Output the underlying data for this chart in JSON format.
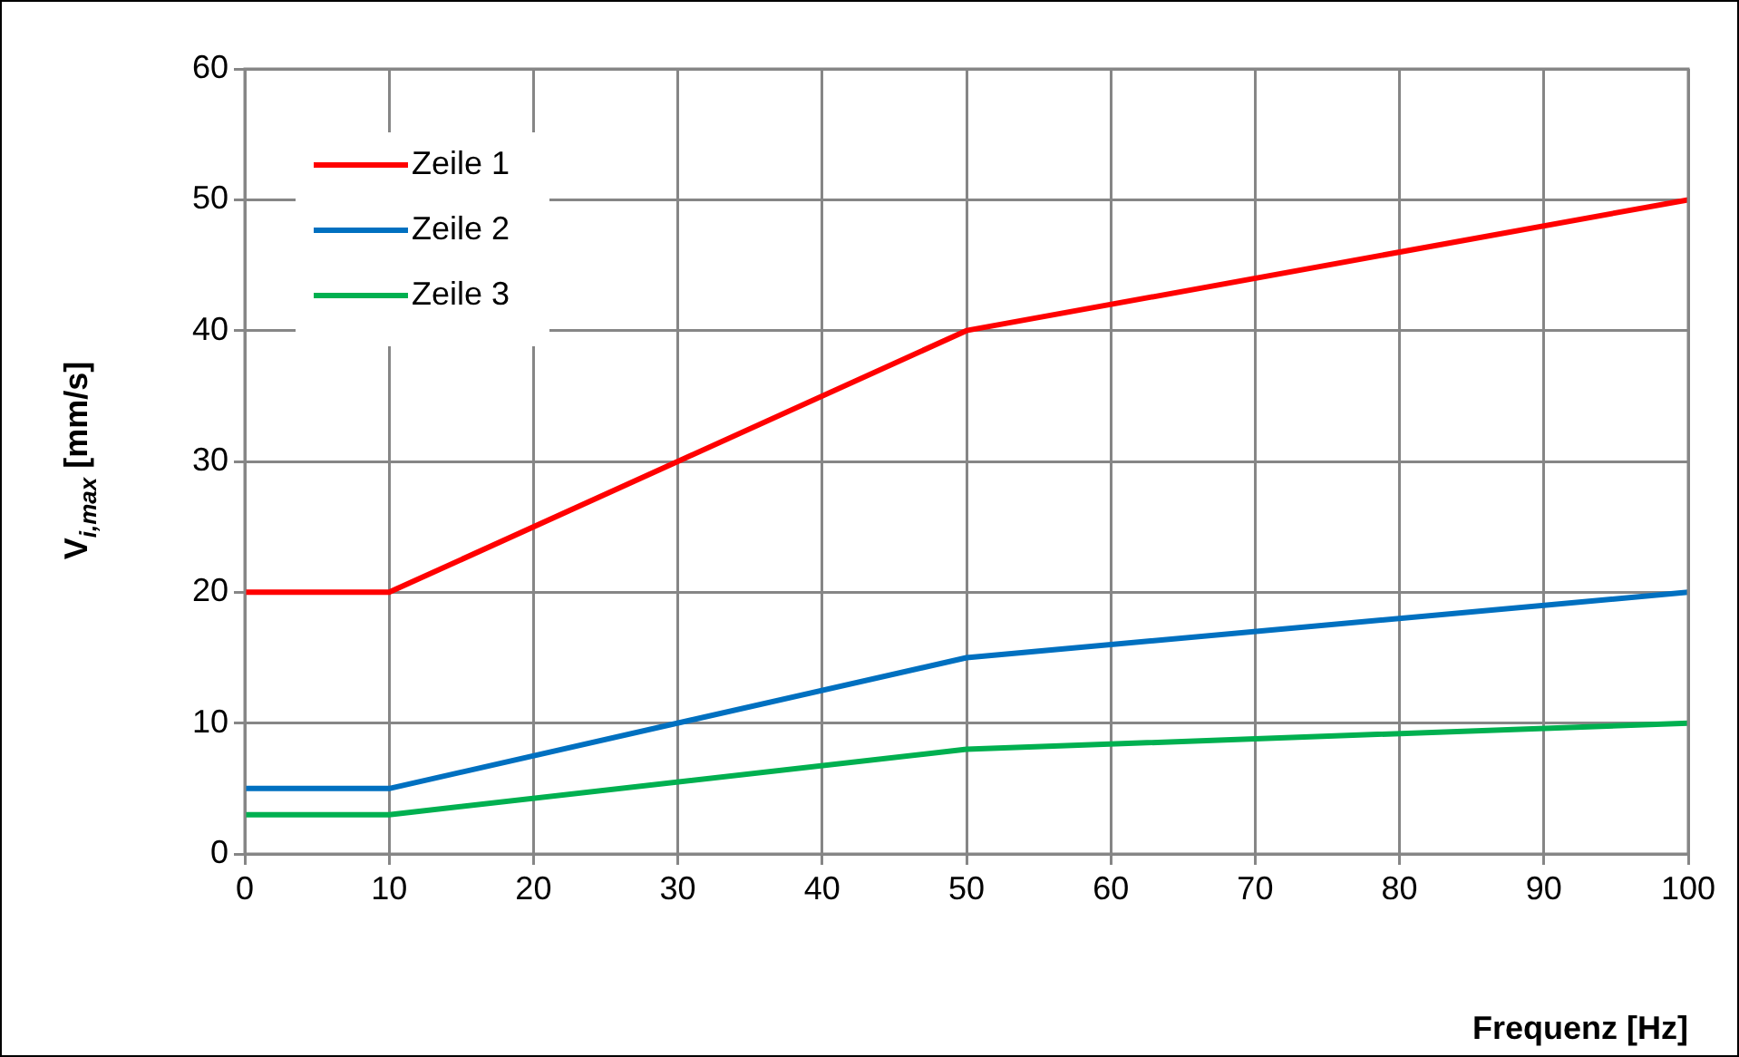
{
  "chart_data": {
    "type": "line",
    "xlabel": "Frequenz [Hz]",
    "ylabel": "V$_{i,max}$ [mm/s]",
    "x": [
      0,
      10,
      50,
      100
    ],
    "series": [
      {
        "name": "Zeile 1",
        "color": "#ff0000",
        "values": [
          20,
          20,
          40,
          50
        ]
      },
      {
        "name": "Zeile 2",
        "color": "#0070c0",
        "values": [
          5,
          5,
          15,
          20
        ]
      },
      {
        "name": "Zeile 3",
        "color": "#00b050",
        "values": [
          3,
          3,
          8,
          10
        ]
      }
    ],
    "xlim": [
      0,
      100
    ],
    "xticks": [
      0,
      10,
      20,
      30,
      40,
      50,
      60,
      70,
      80,
      90,
      100
    ],
    "ylim": [
      0,
      60
    ],
    "yticks": [
      0,
      10,
      20,
      30,
      40,
      50,
      60
    ],
    "grid": true,
    "legend": "top left",
    "marker": "none",
    "line_style": "solid"
  }
}
